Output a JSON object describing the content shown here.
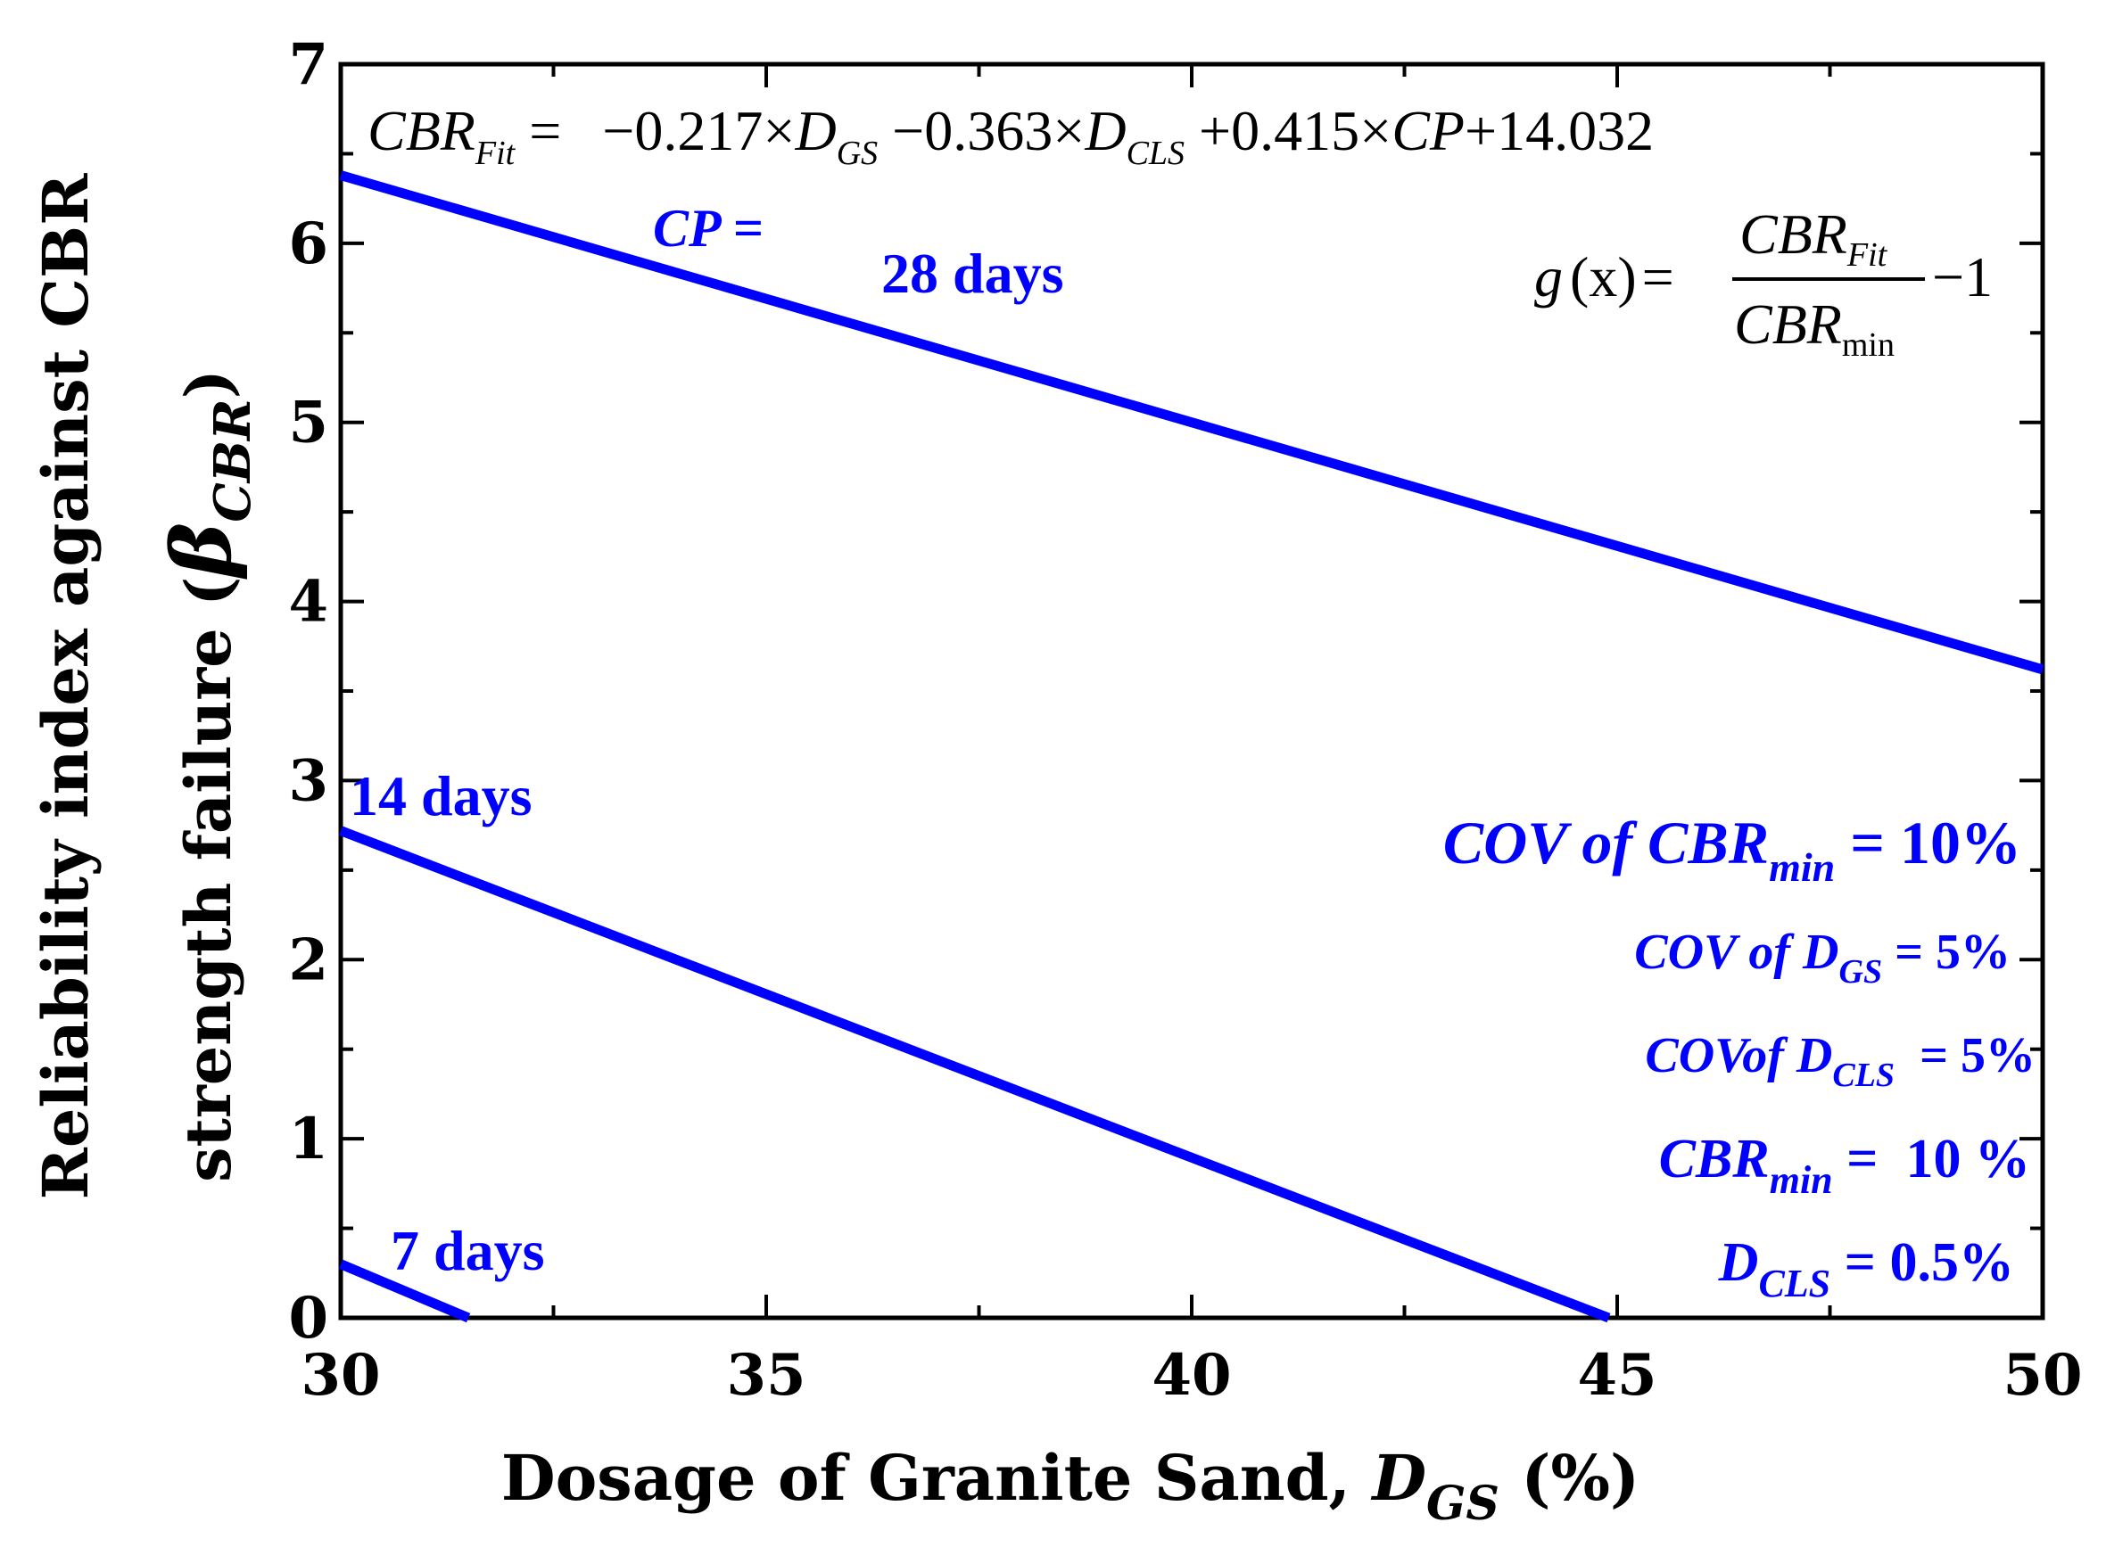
{
  "chart_data": {
    "type": "line",
    "xlabel": "Dosage of Granite Sand, ",
    "xlabel_var": "D",
    "xlabel_sub": "GS",
    "xlabel_unit": " (%)",
    "ylabel_line1": "Reliability index against CBR",
    "ylabel_line2": "strength failure (",
    "ylabel_symbol": "β",
    "ylabel_sub": "CBR",
    "ylabel_close": ")",
    "xlim": [
      30,
      50
    ],
    "ylim": [
      0,
      7
    ],
    "x_ticks": [
      "30",
      "35",
      "40",
      "45",
      "50"
    ],
    "y_ticks": [
      "0",
      "1",
      "2",
      "3",
      "4",
      "5",
      "6",
      "7"
    ],
    "series": [
      {
        "name": "28 days",
        "x": [
          30,
          50
        ],
        "y": [
          6.38,
          3.62
        ]
      },
      {
        "name": "14 days",
        "x": [
          30,
          44.9
        ],
        "y": [
          2.72,
          0
        ]
      },
      {
        "name": "7 days",
        "x": [
          30,
          31.5
        ],
        "y": [
          0.3,
          0
        ]
      }
    ],
    "line_color": "#0000ff"
  },
  "equations": {
    "cbr_lhs": "CBR",
    "cbr_lhs_sub": "Fit",
    "eq_sign": " = ",
    "term1": "−0.217×",
    "term1_var": "D",
    "term1_sub": "GS",
    "term2": " −0.363×",
    "term2_var": "D",
    "term2_sub": "CLS",
    "term3": " +0.415×",
    "term3_var": "CP",
    "term4": "+14.032",
    "g_lhs": "g",
    "g_arg": "(x)",
    "g_eq": "=",
    "g_num": "CBR",
    "g_num_sub": "Fit",
    "g_den": "CBR",
    "g_den_sub": "min",
    "g_tail": "−1"
  },
  "annotations": {
    "cp_label": "CP =",
    "days28": "28 days",
    "days14": "14 days",
    "days7": "7 days",
    "cov_cbr_pre": "COV of CBR",
    "cov_cbr_sub": "min",
    "cov_cbr_val": " = 10%",
    "cov_dgs_pre": "COV of D",
    "cov_dgs_sub": "GS",
    "cov_dgs_val": " = 5%",
    "cov_dcls_pre": "COVof D",
    "cov_dcls_sub": "CLS",
    "cov_dcls_val": "  = 5%",
    "cbrmin_pre": "CBR",
    "cbrmin_sub": "min",
    "cbrmin_val": " =  10 %",
    "dcls_pre": "D",
    "dcls_sub": "CLS",
    "dcls_val": " = 0.5%"
  }
}
